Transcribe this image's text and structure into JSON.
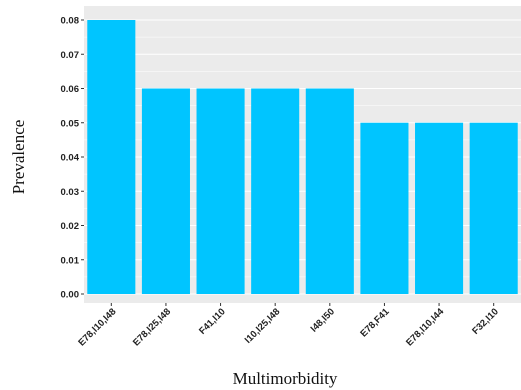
{
  "chart_data": {
    "type": "bar",
    "title": "",
    "xlabel": "Multimorbidity",
    "ylabel": "Prevalence",
    "categories": [
      "E78,I10,I48",
      "E78,I25,I48",
      "F41,I10",
      "I10,I25,I48",
      "I48,I50",
      "E78,F41",
      "E78,I10,I44",
      "F32,I10"
    ],
    "values": [
      0.08,
      0.06,
      0.06,
      0.06,
      0.06,
      0.05,
      0.05,
      0.05
    ],
    "ylim": [
      0,
      0.08
    ],
    "yticks": [
      "0.00",
      "0.01",
      "0.02",
      "0.03",
      "0.04",
      "0.05",
      "0.06",
      "0.07",
      "0.08"
    ],
    "grid": true,
    "legend": "none",
    "colors": {
      "bar": "#00C5FF",
      "panel_background": "#EBEBEB",
      "grid": "#FFFFFF"
    }
  }
}
